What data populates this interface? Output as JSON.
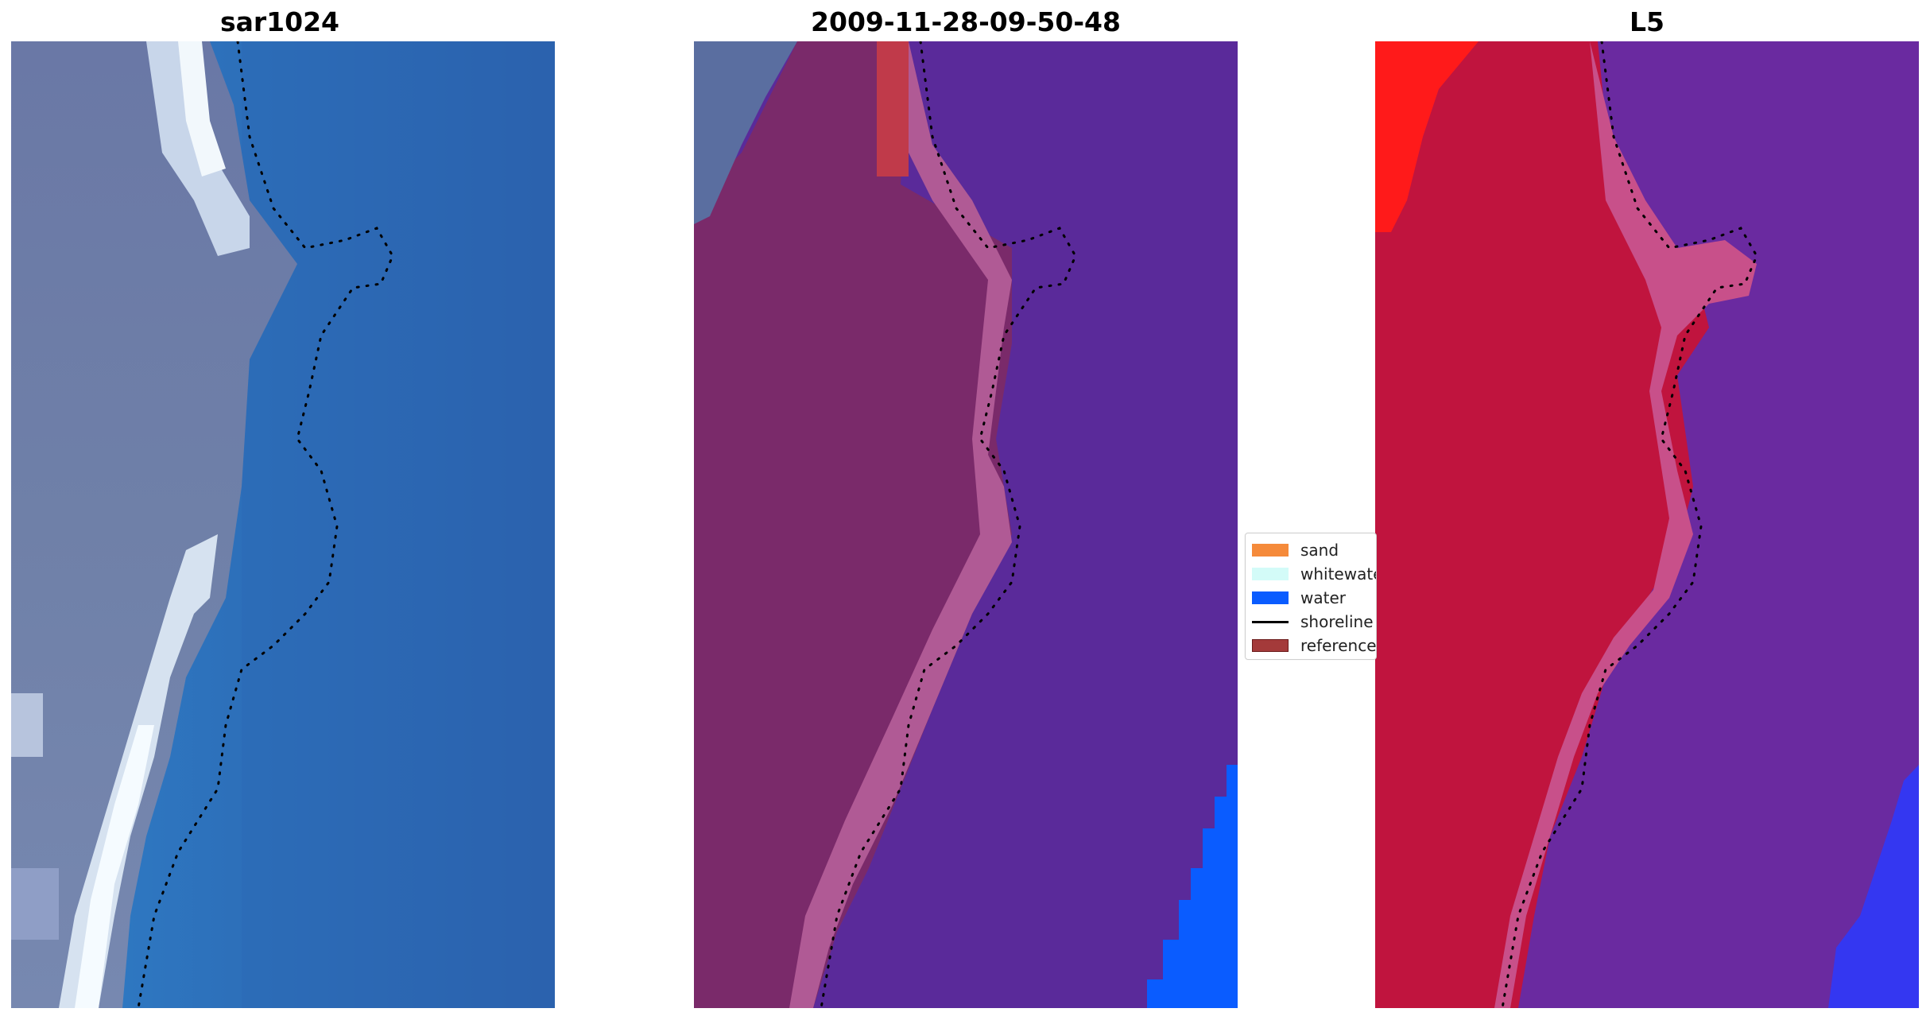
{
  "figure": {
    "titles": [
      "sar1024",
      "2009-11-28-09-50-48",
      "L5"
    ]
  },
  "legend": {
    "items": [
      {
        "label": "sand",
        "color": "#f58a3a",
        "kind": "patch"
      },
      {
        "label": "whitewater",
        "color": "#d3fbf8",
        "kind": "patch"
      },
      {
        "label": "water",
        "color": "#0a5cff",
        "kind": "patch"
      },
      {
        "label": "shoreline",
        "color": "#000000",
        "kind": "line"
      },
      {
        "label": "reference",
        "color": "#a43a3a",
        "kind": "patch"
      }
    ]
  },
  "colors": {
    "sar_land": "#6f7fa6",
    "sar_water": "#2c6fb8",
    "sar_whitewater": "#eef6fb",
    "class_sand_overlay": "#7a2a6a",
    "class_swash": "#b05a95",
    "class_water_overlay": "#5a2a9a",
    "class_water": "#0a5cff",
    "class_corner": "#5a6ea0",
    "class_reference": "#c03a4a",
    "l5_land": "#c0143e",
    "l5_transition": "#c8508a",
    "l5_water": "#6a2aa0",
    "l5_hot": "#ff1a1a",
    "l5_blue": "#2a3aff"
  }
}
